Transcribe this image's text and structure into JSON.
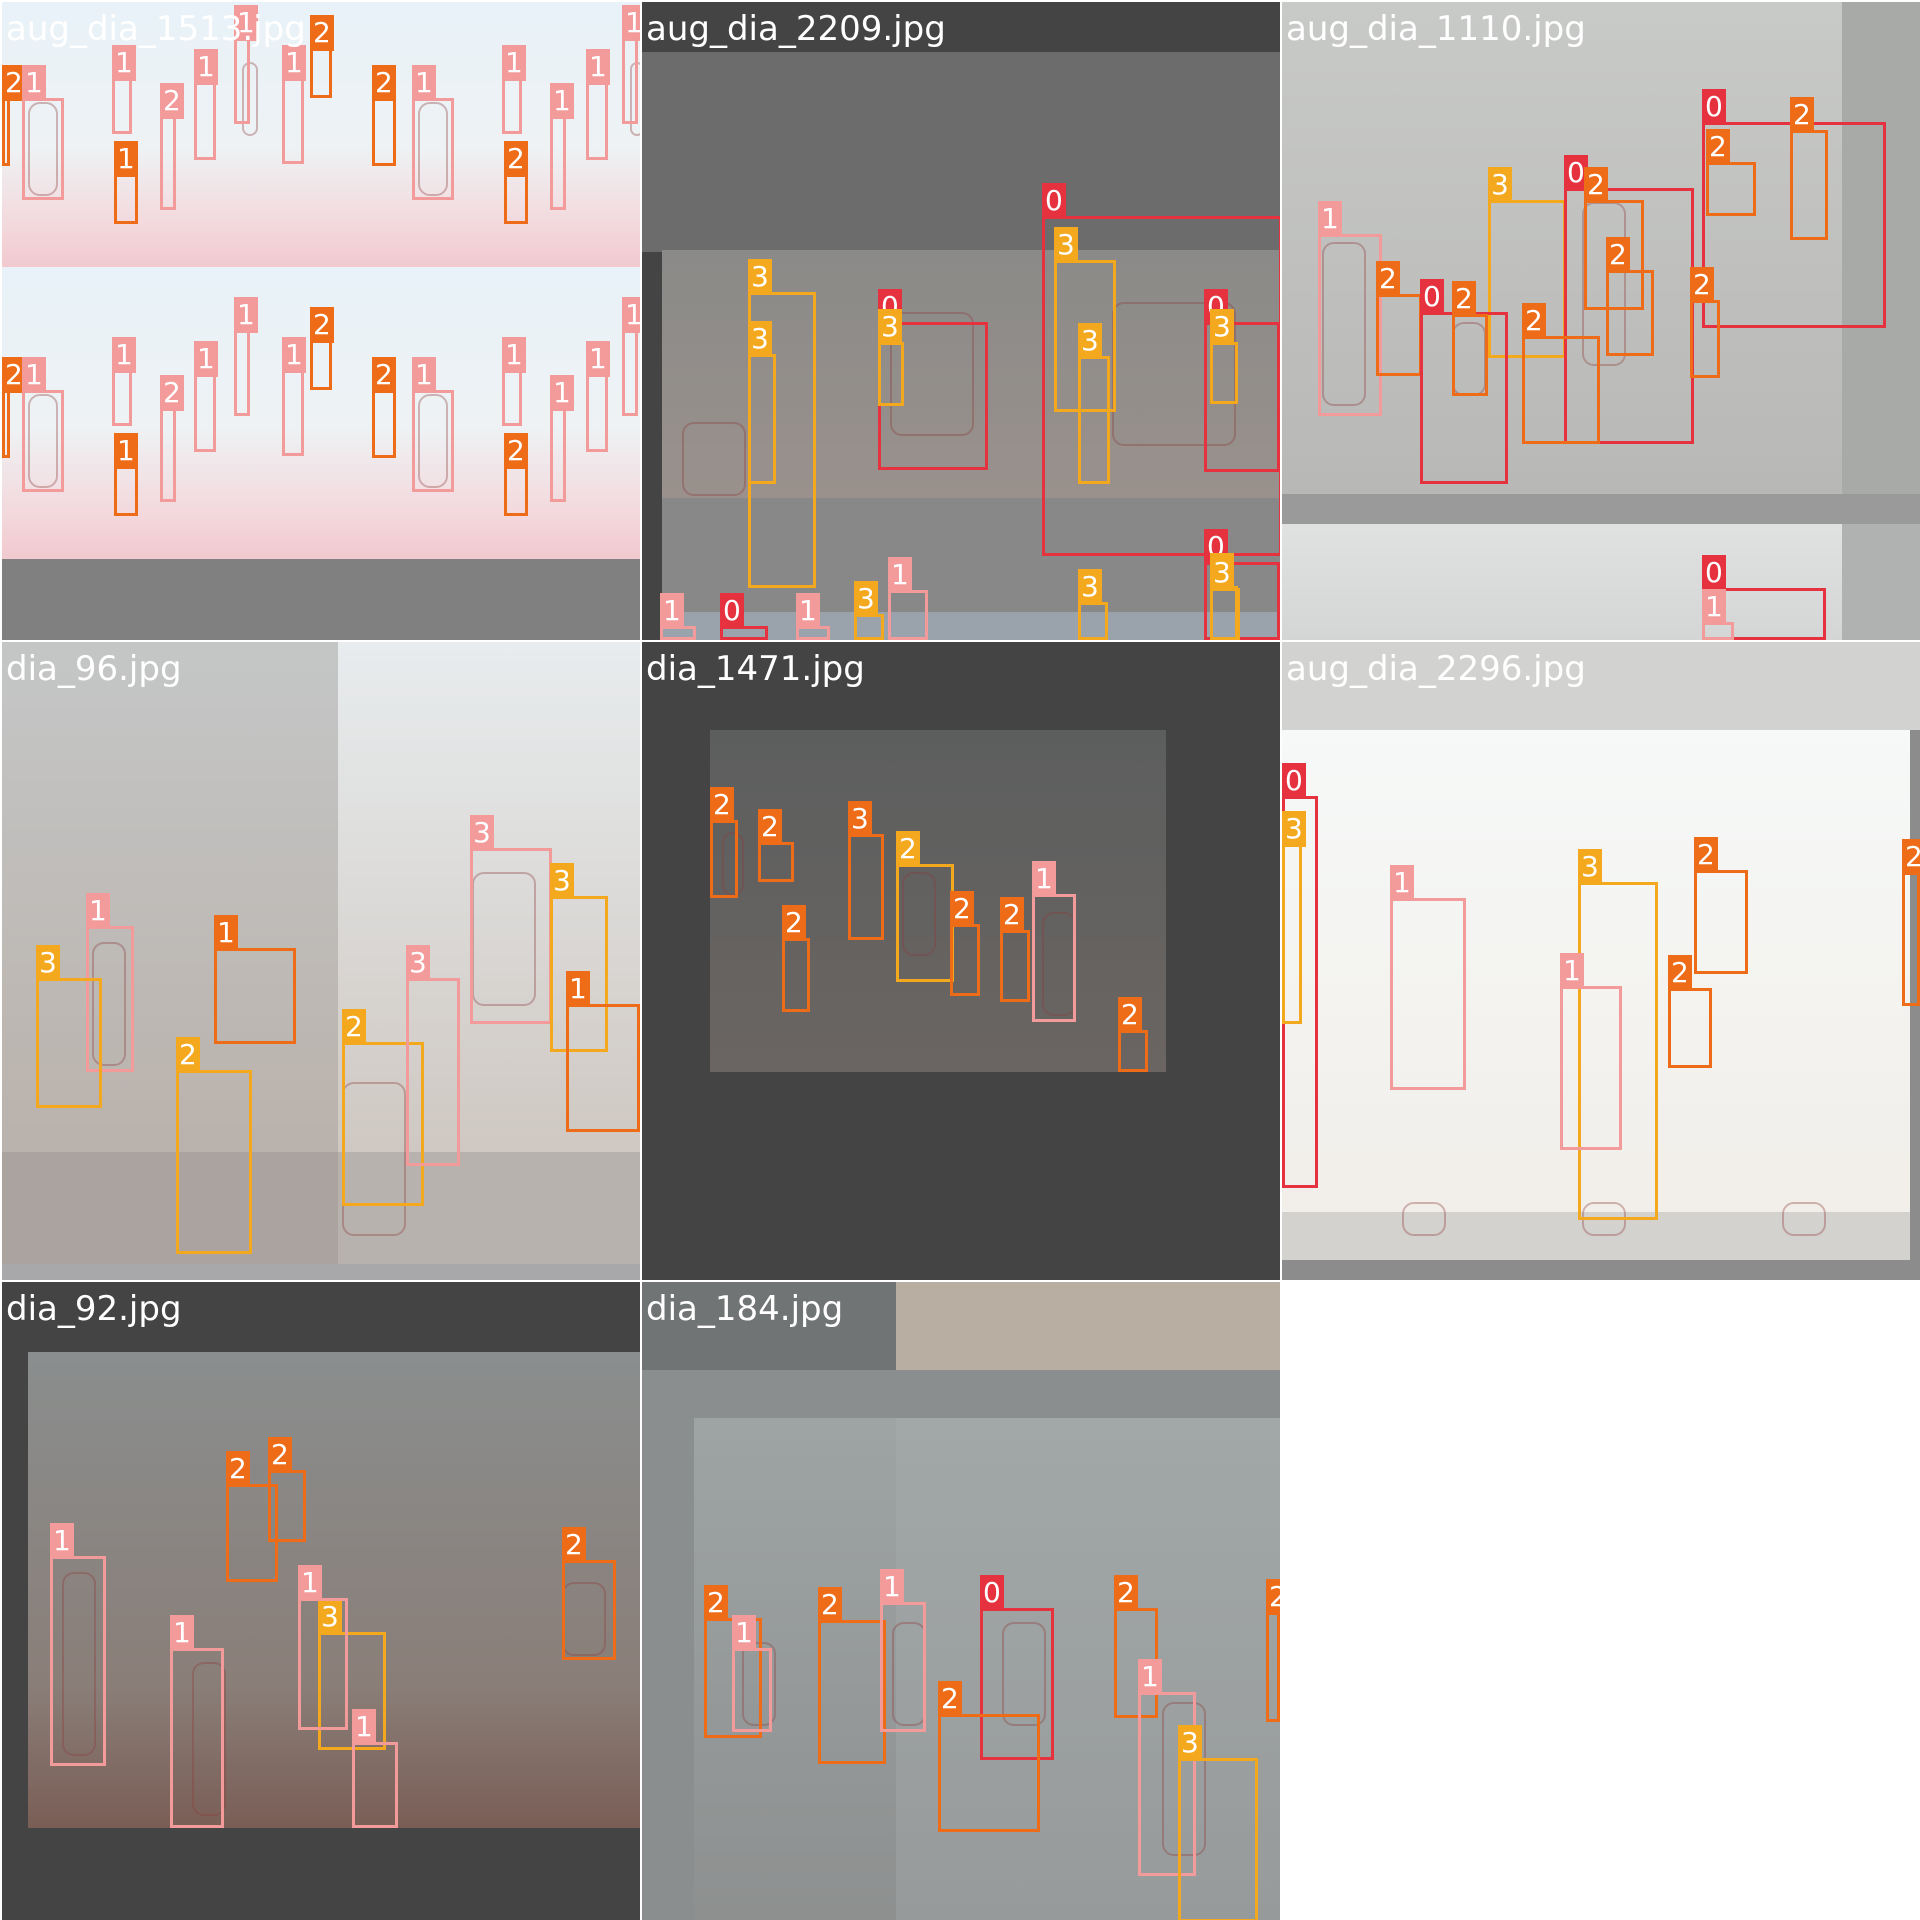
{
  "colors": {
    "class_0": "#e6323e",
    "class_1": "#f39a9a",
    "class_2": "#ee6b18",
    "class_3": "#f4a81d",
    "padding_gray": "#808080",
    "dark_gray": "#444444"
  },
  "tiles": [
    {
      "filename": "aug_dia_1513.jpg",
      "labels": [
        "2",
        "1",
        "1",
        "1",
        "2",
        "1",
        "1",
        "1",
        "2",
        "2",
        "1",
        "1",
        "2",
        "1",
        "1",
        "1",
        "2",
        "1",
        "1",
        "1",
        "2",
        "1",
        "1",
        "1",
        "2",
        "2",
        "1",
        "1",
        "2",
        "1",
        "1",
        "1"
      ]
    },
    {
      "filename": "aug_dia_2209.jpg",
      "labels": [
        "3",
        "3",
        "0",
        "3",
        "0",
        "3",
        "3",
        "0",
        "3",
        "0",
        "3",
        "1",
        "0",
        "1",
        "3",
        "1",
        "3",
        "3"
      ]
    },
    {
      "filename": "aug_dia_1110.jpg",
      "labels": [
        "0",
        "2",
        "2",
        "3",
        "0",
        "2",
        "1",
        "2",
        "0",
        "2",
        "2",
        "2",
        "2",
        "0",
        "1"
      ]
    },
    {
      "filename": "dia_96.jpg",
      "labels": [
        "1",
        "3",
        "1",
        "2",
        "3",
        "3",
        "1",
        "2",
        "3"
      ]
    },
    {
      "filename": "dia_1471.jpg",
      "labels": [
        "2",
        "2",
        "2",
        "3",
        "2",
        "2",
        "2",
        "1",
        "2"
      ]
    },
    {
      "filename": "aug_dia_2296.jpg",
      "labels": [
        "0",
        "3",
        "1",
        "3",
        "2",
        "1",
        "2",
        "2"
      ]
    },
    {
      "filename": "dia_92.jpg",
      "labels": [
        "2",
        "2",
        "1",
        "2",
        "1",
        "3",
        "1",
        "1"
      ]
    },
    {
      "filename": "dia_184.jpg",
      "labels": [
        "2",
        "1",
        "2",
        "1",
        "0",
        "2",
        "2",
        "2",
        "1",
        "3"
      ]
    }
  ]
}
